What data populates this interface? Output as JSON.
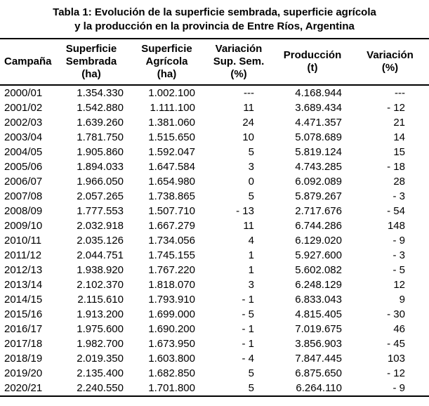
{
  "title": {
    "line1": "Tabla 1: Evolución de la superficie sembrada, superficie agrícola",
    "line2": "y la producción en la provincia de Entre Ríos, Argentina"
  },
  "table": {
    "header_lines": [
      [
        "Campaña"
      ],
      [
        "Superficie",
        "Sembrada",
        "(ha)"
      ],
      [
        "Superficie",
        "Agrícola",
        "(ha)"
      ],
      [
        "Variación",
        "Sup. Sem.",
        "(%)"
      ],
      [
        "Producción",
        "(t)"
      ],
      [
        "Variación",
        "(%)"
      ]
    ]
  },
  "chart_data": {
    "type": "table",
    "title": "Tabla 1: Evolución de la superficie sembrada, superficie agrícola y la producción en la provincia de Entre Ríos, Argentina",
    "columns": [
      "Campaña",
      "Superficie Sembrada (ha)",
      "Superficie Agrícola (ha)",
      "Variación Sup. Sem. (%)",
      "Producción (t)",
      "Variación (%)"
    ],
    "rows": [
      [
        "2000/01",
        "1.354.330",
        "1.002.100",
        "---",
        "4.168.944",
        "---"
      ],
      [
        "2001/02",
        "1.542.880",
        "1.111.100",
        "11",
        "3.689.434",
        "- 12"
      ],
      [
        "2002/03",
        "1.639.260",
        "1.381.060",
        "24",
        "4.471.357",
        "21"
      ],
      [
        "2003/04",
        "1.781.750",
        "1.515.650",
        "10",
        "5.078.689",
        "14"
      ],
      [
        "2004/05",
        "1.905.860",
        "1.592.047",
        "5",
        "5.819.124",
        "15"
      ],
      [
        "2005/06",
        "1.894.033",
        "1.647.584",
        "3",
        "4.743.285",
        "- 18"
      ],
      [
        "2006/07",
        "1.966.050",
        "1.654.980",
        "0",
        "6.092.089",
        "28"
      ],
      [
        "2007/08",
        "2.057.265",
        "1.738.865",
        "5",
        "5.879.267",
        "- 3"
      ],
      [
        "2008/09",
        "1.777.553",
        "1.507.710",
        "- 13",
        "2.717.676",
        "- 54"
      ],
      [
        "2009/10",
        "2.032.918",
        "1.667.279",
        "11",
        "6.744.286",
        "148"
      ],
      [
        "2010/11",
        "2.035.126",
        "1.734.056",
        "4",
        "6.129.020",
        "- 9"
      ],
      [
        "2011/12",
        "2.044.751",
        "1.745.155",
        "1",
        "5.927.600",
        "- 3"
      ],
      [
        "2012/13",
        "1.938.920",
        "1.767.220",
        "1",
        "5.602.082",
        "- 5"
      ],
      [
        "2013/14",
        "2.102.370",
        "1.818.070",
        "3",
        "6.248.129",
        "12"
      ],
      [
        "2014/15",
        "2.115.610",
        "1.793.910",
        "- 1",
        "6.833.043",
        "9"
      ],
      [
        "2015/16",
        "1.913.200",
        "1.699.000",
        "- 5",
        "4.815.405",
        "- 30"
      ],
      [
        "2016/17",
        "1.975.600",
        "1.690.200",
        "- 1",
        "7.019.675",
        "46"
      ],
      [
        "2017/18",
        "1.982.700",
        "1.673.950",
        "- 1",
        "3.856.903",
        "- 45"
      ],
      [
        "2018/19",
        "2.019.350",
        "1.603.800",
        "- 4",
        "7.847.445",
        "103"
      ],
      [
        "2019/20",
        "2.135.400",
        "1.682.850",
        "5",
        "6.875.650",
        "- 12"
      ],
      [
        "2020/21",
        "2.240.550",
        "1.701.800",
        "5",
        "6.264.110",
        "- 9"
      ]
    ]
  }
}
